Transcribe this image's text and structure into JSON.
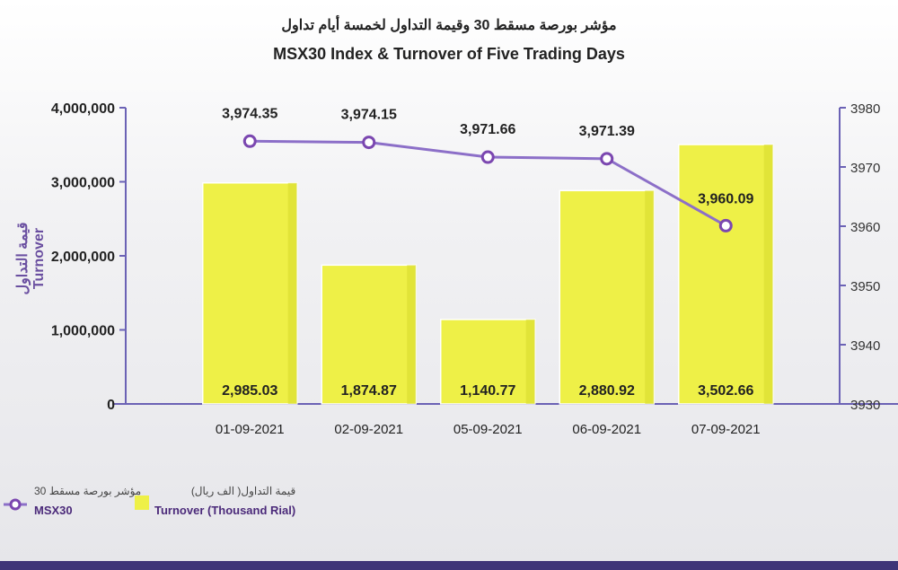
{
  "title_ar": "مؤشر بورصة مسقط 30 وقيمة التداول لخمسة أيام تداول",
  "title_en": "MSX30 Index & Turnover of Five Trading Days",
  "left_axis_label_ar": "قيمة التداول",
  "left_axis_label_en": "Turnover",
  "legend": {
    "line_ar": "مؤشر بورصة مسقط 30",
    "line_en": "MSX30",
    "bar_ar": "قيمة التداول( الف ريال)",
    "bar_en": "Turnover (Thousand Rial)"
  },
  "colors": {
    "bar": "#eef047",
    "line": "#8c6fc8",
    "marker": "#7b47b0",
    "axis": "#6b62b5",
    "band": "#3f3578"
  },
  "chart_data": {
    "type": "bar",
    "title": "MSX30 Index & Turnover of Five Trading Days",
    "categories": [
      "01-09-2021",
      "02-09-2021",
      "05-09-2021",
      "06-09-2021",
      "07-09-2021"
    ],
    "series": [
      {
        "name": "Turnover (Thousand Rial)",
        "type": "bar",
        "axis": "left",
        "values": [
          2985.03,
          1874.87,
          1140.77,
          2880.92,
          3502.66
        ],
        "labels": [
          "2,985.03",
          "1,874.87",
          "1,140.77",
          "2,880.92",
          "3,502.66"
        ]
      },
      {
        "name": "MSX30",
        "type": "line",
        "axis": "right",
        "values": [
          3974.35,
          3974.15,
          3971.66,
          3971.39,
          3960.09
        ],
        "labels": [
          "3,974.35",
          "3,974.15",
          "3,971.66",
          "3,971.39",
          "3,960.09"
        ]
      }
    ],
    "left_axis": {
      "ylim": [
        0,
        4000000
      ],
      "ticks": [
        "0",
        "1,000,000",
        "2,000,000",
        "3,000,000",
        "4,000,000"
      ],
      "tick_values": [
        0,
        1000000,
        2000000,
        3000000,
        4000000
      ]
    },
    "right_axis": {
      "ylim": [
        3930,
        3980
      ],
      "ticks": [
        "3930",
        "3940",
        "3950",
        "3960",
        "3970",
        "3980"
      ],
      "tick_values": [
        3930,
        3940,
        3950,
        3960,
        3970,
        3980
      ]
    },
    "ylabel": "Turnover",
    "legend_position": "bottom-left"
  }
}
